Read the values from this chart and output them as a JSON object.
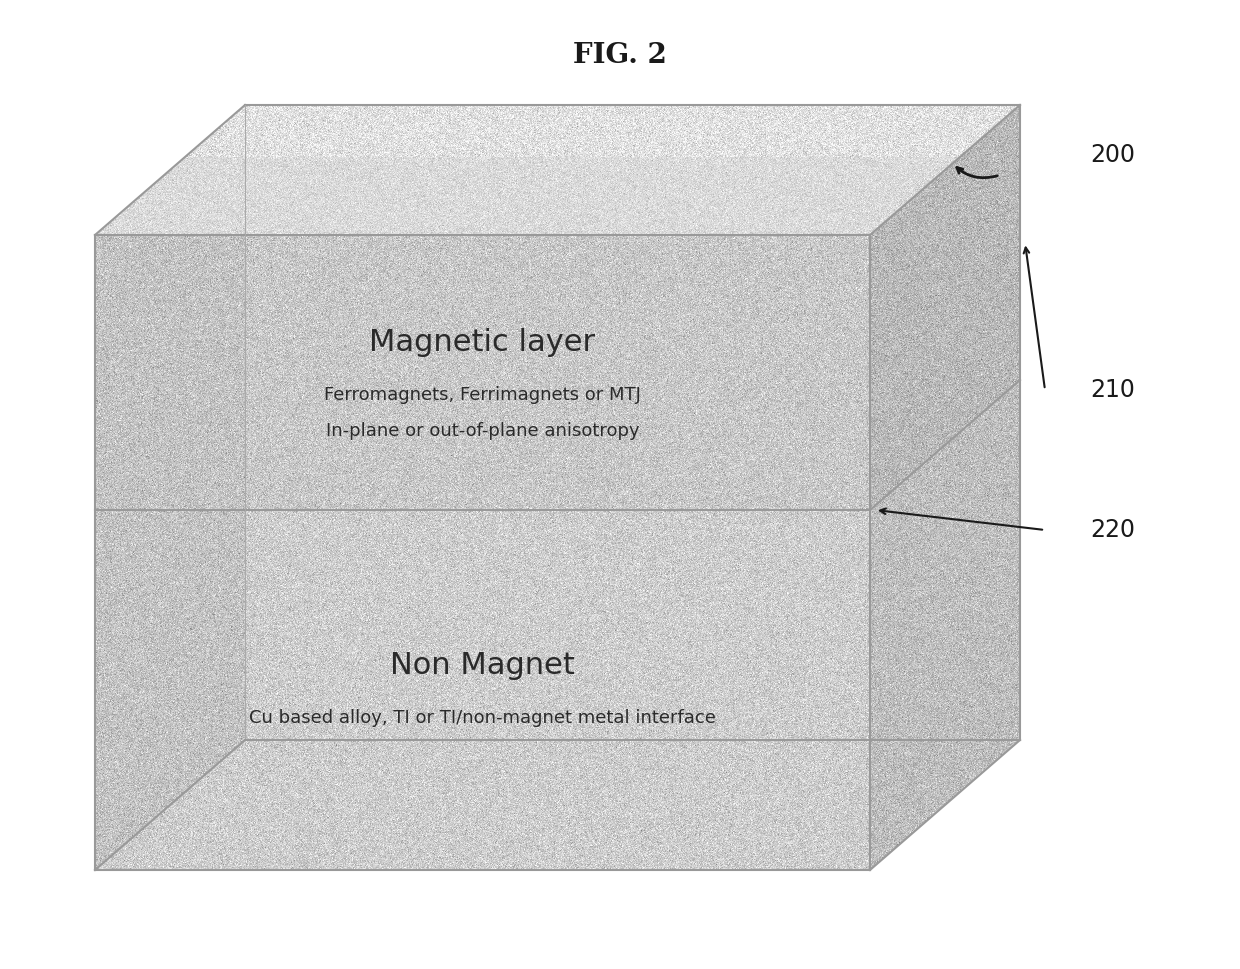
{
  "title": "FIG. 2",
  "title_fontsize": 20,
  "title_fontweight": "bold",
  "bg_color": "#ffffff",
  "label_200": "200",
  "label_210": "210",
  "label_220": "220",
  "layer_top_title": "Magnetic layer",
  "layer_top_sub1": "Ferromagnets, Ferrimagnets or MTJ",
  "layer_top_sub2": "In-plane or out-of-plane anisotropy",
  "layer_bot_title": "Non Magnet",
  "layer_bot_sub": "Cu based alloy, TI or TI/non-magnet metal interface",
  "front_color_top": "#cccccc",
  "front_color_bot": "#c8c8c8",
  "top_face_color": "#e0e0e0",
  "right_face_color_top": "#b8b8b8",
  "right_face_color_bot": "#b4b4b4",
  "left_tri_color": "#d0d0d0",
  "inner_band_color": "#d4d4d4",
  "edge_color": "#999999",
  "text_color": "#2a2a2a",
  "annotation_color": "#1a1a1a",
  "noise_std": 18
}
